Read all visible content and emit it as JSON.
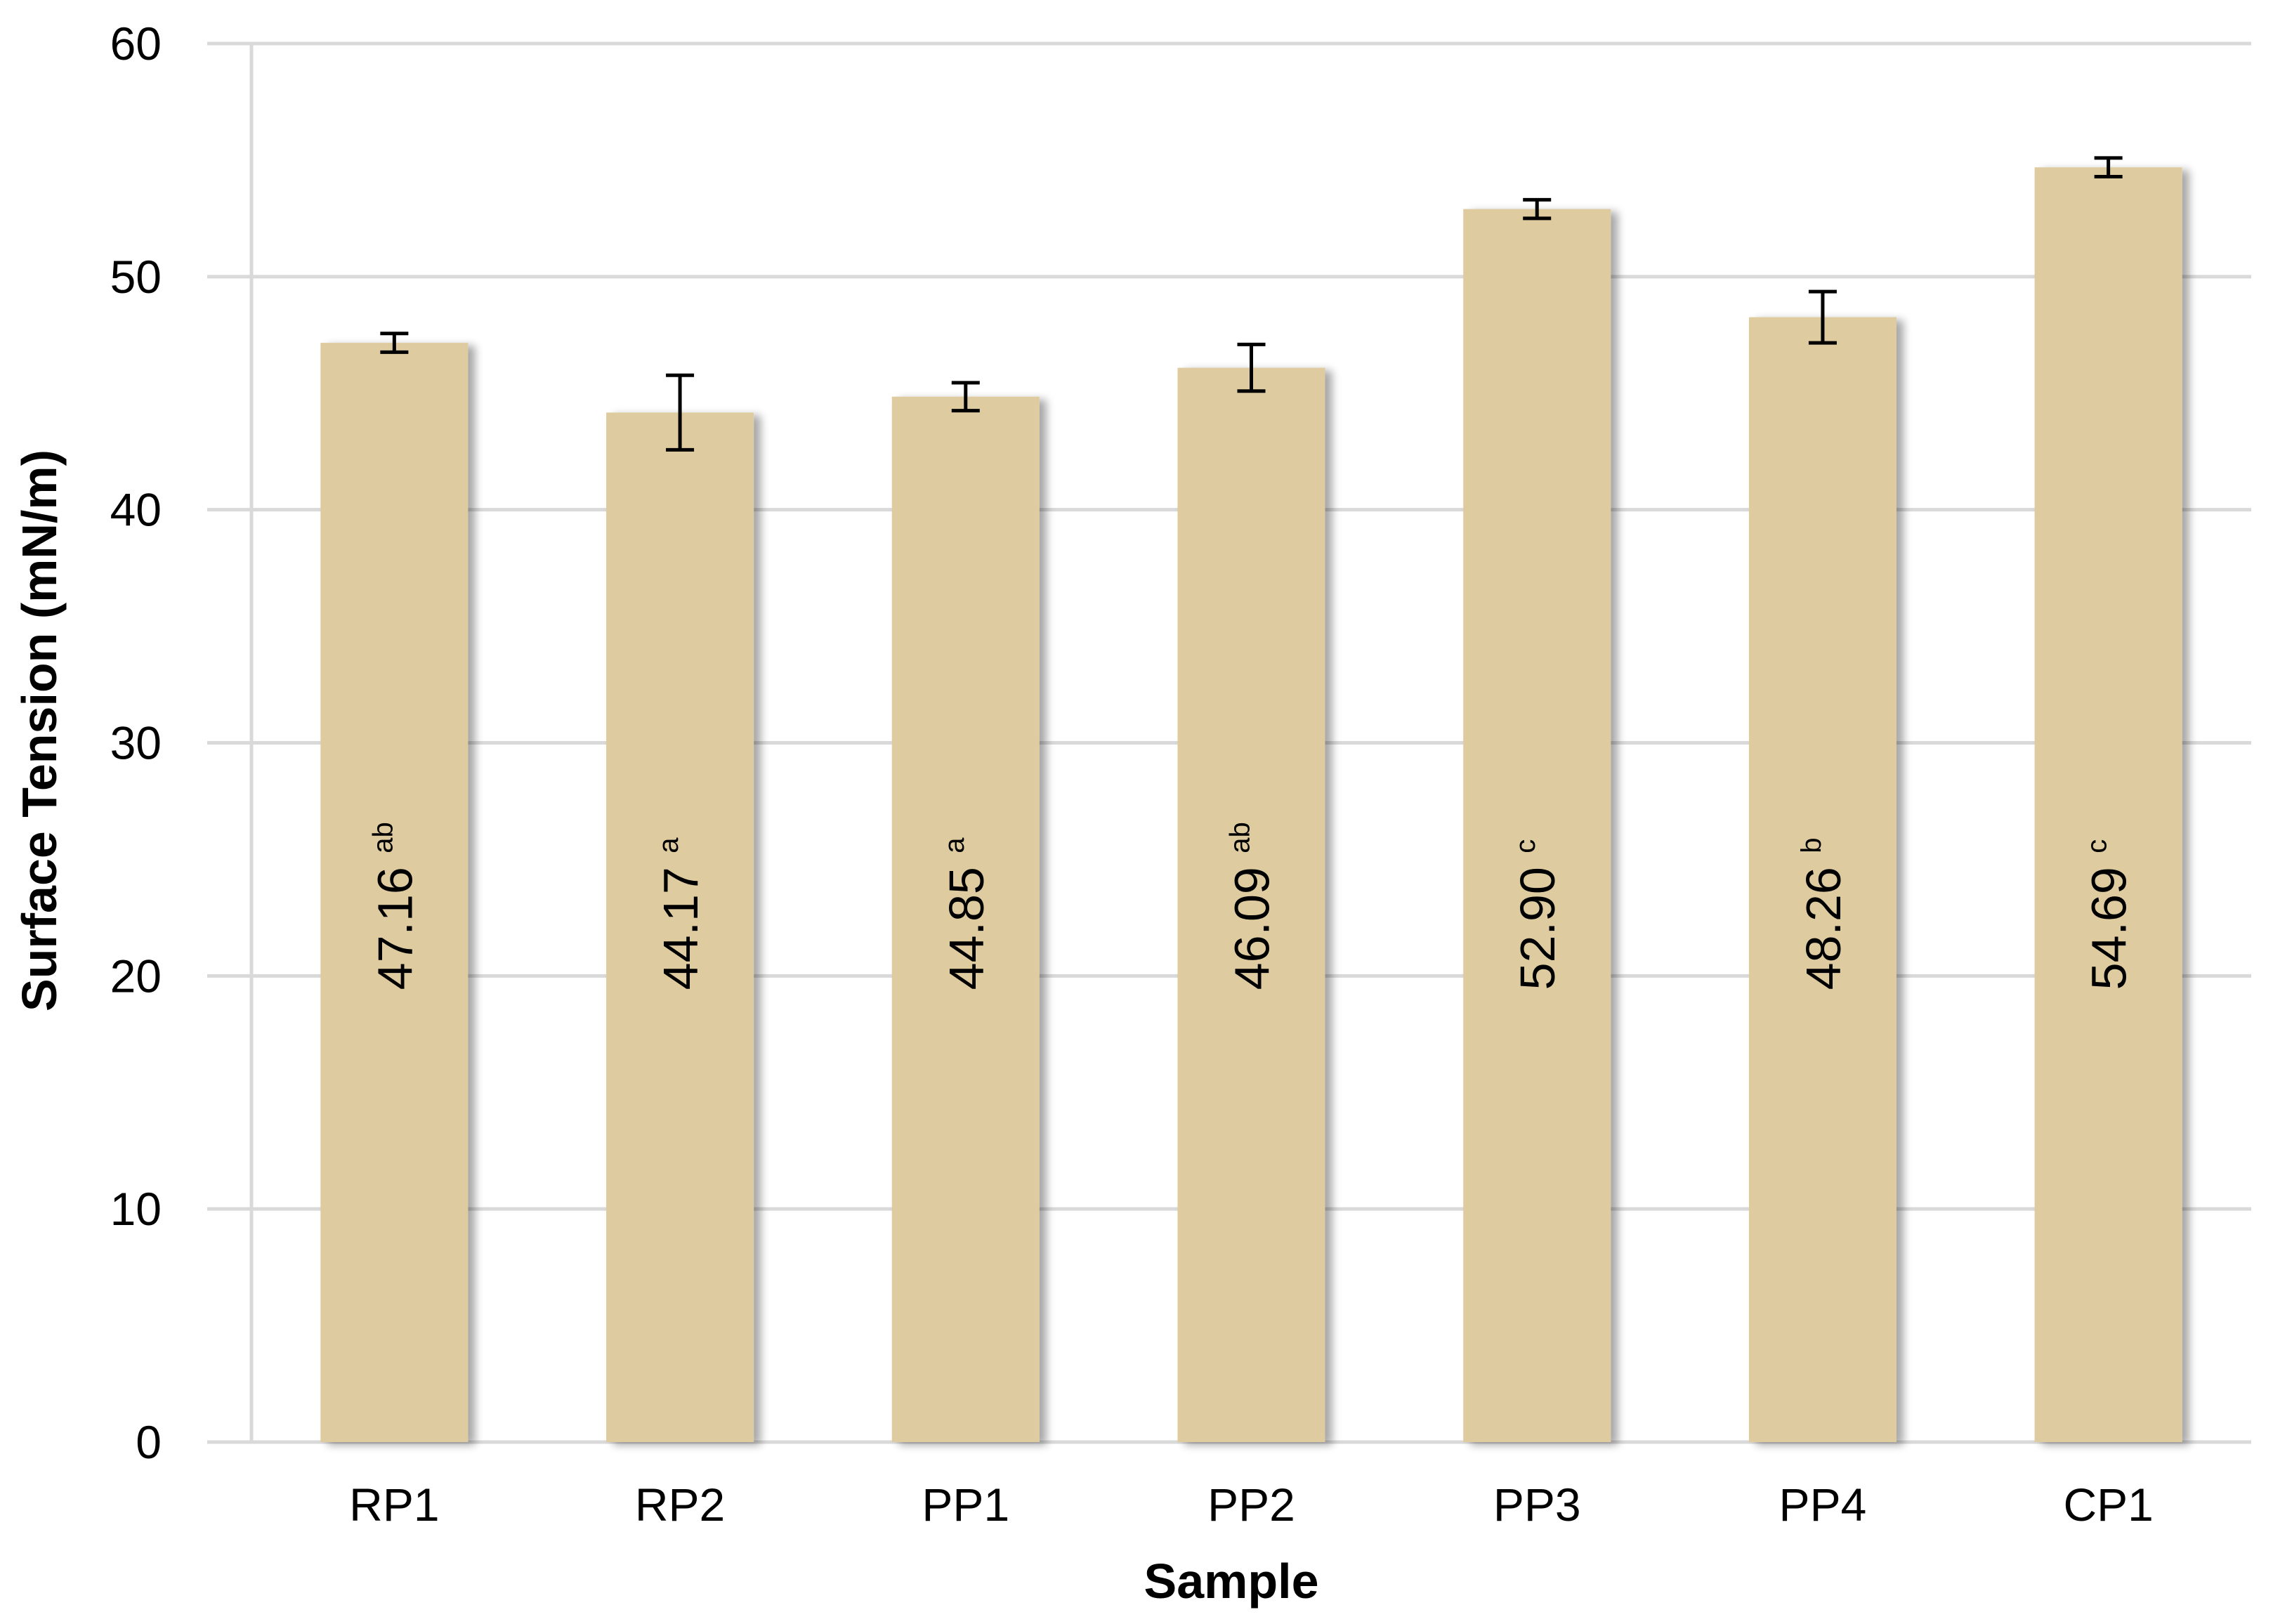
{
  "chart_data": {
    "type": "bar",
    "xlabel": "Sample",
    "ylabel": "Surface Tension (mN/m)",
    "ylim": [
      0,
      60
    ],
    "yticks": [
      0,
      10,
      20,
      30,
      40,
      50,
      60
    ],
    "grid": true,
    "categories": [
      "RP1",
      "RP2",
      "PP1",
      "PP2",
      "PP3",
      "PP4",
      "CP1"
    ],
    "values": [
      47.16,
      44.17,
      44.85,
      46.09,
      52.9,
      48.26,
      54.69
    ],
    "value_labels": [
      "47.16",
      "44.17",
      "44.85",
      "46.09",
      "52.90",
      "48.26",
      "54.69"
    ],
    "significance_letters": [
      "ab",
      "a",
      "a",
      "ab",
      "c",
      "b",
      "c"
    ],
    "error": [
      0.4,
      1.6,
      0.6,
      1.0,
      0.4,
      1.1,
      0.4
    ],
    "colors": {
      "bar": "#dfcba0",
      "bar_shadow": "#c9c9c9",
      "grid": "#d9d9d9",
      "axis": "#d9d9d9",
      "error_bar": "#000000"
    }
  }
}
